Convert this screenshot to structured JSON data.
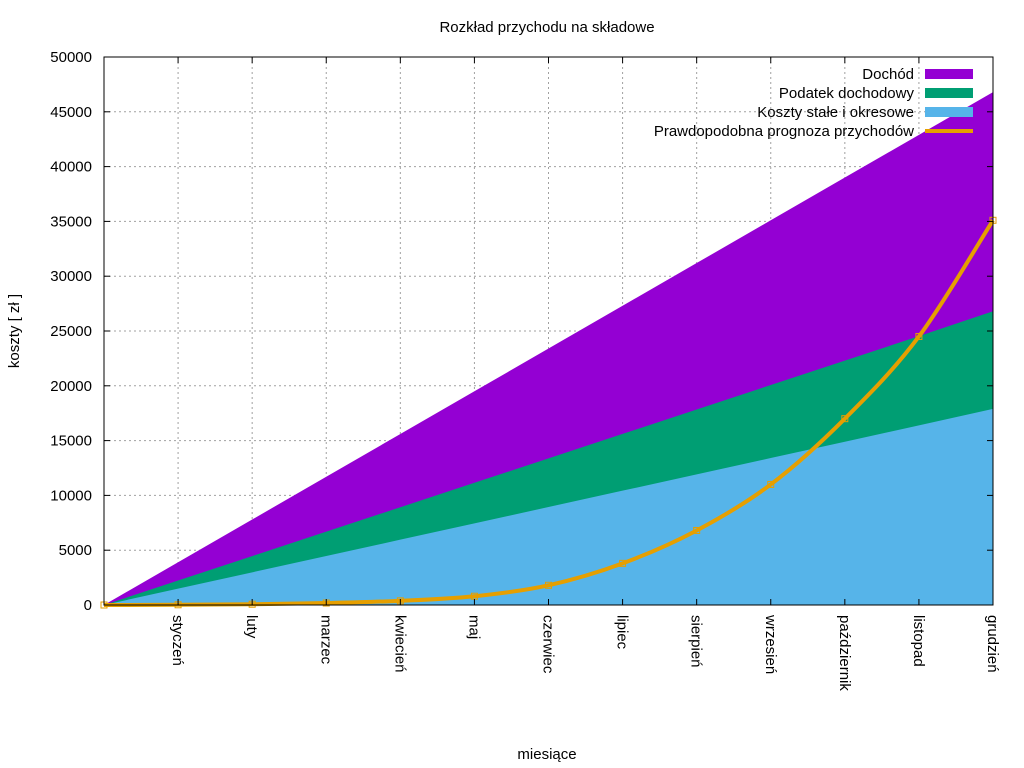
{
  "chart_data": {
    "type": "area",
    "title": "Rozkład przychodu na składowe",
    "xlabel": "miesiące",
    "ylabel": "koszty [ zł ]",
    "ylim": [
      0,
      50000
    ],
    "yticks": [
      0,
      5000,
      10000,
      15000,
      20000,
      25000,
      30000,
      35000,
      40000,
      45000,
      50000
    ],
    "xlim": [
      0,
      12
    ],
    "categories": [
      "styczeń",
      "luty",
      "marzec",
      "kwiecień",
      "maj",
      "czerwiec",
      "lipiec",
      "sierpień",
      "wrzesień",
      "październik",
      "listopad",
      "grudzień"
    ],
    "x": [
      0,
      1,
      2,
      3,
      4,
      5,
      6,
      7,
      8,
      9,
      10,
      11,
      12
    ],
    "grid": true,
    "legend_position": "top-right",
    "series": [
      {
        "name": "Dochód",
        "kind": "stacked-area",
        "color": "#9400d3",
        "values": [
          0,
          3900,
          7800,
          11700,
          15600,
          19500,
          23400,
          27300,
          31200,
          35100,
          39000,
          42900,
          46800
        ]
      },
      {
        "name": "Podatek dochodowy",
        "kind": "stacked-area",
        "color": "#009e73",
        "values": [
          0,
          2230,
          4460,
          6690,
          8920,
          11150,
          13380,
          15610,
          17840,
          20070,
          22300,
          24530,
          26800
        ]
      },
      {
        "name": "Koszty stałe i okresowe",
        "kind": "stacked-area",
        "color": "#56b4e9",
        "values": [
          0,
          1490,
          2980,
          4470,
          5960,
          7450,
          8940,
          10430,
          11920,
          13410,
          14900,
          16390,
          17900
        ]
      },
      {
        "name": "Prawdopodobna prognoza przychodów",
        "kind": "line",
        "color": "#e69f00",
        "values": [
          0,
          20,
          70,
          180,
          380,
          800,
          1800,
          3800,
          6800,
          11000,
          17000,
          24500,
          35100
        ]
      }
    ]
  }
}
